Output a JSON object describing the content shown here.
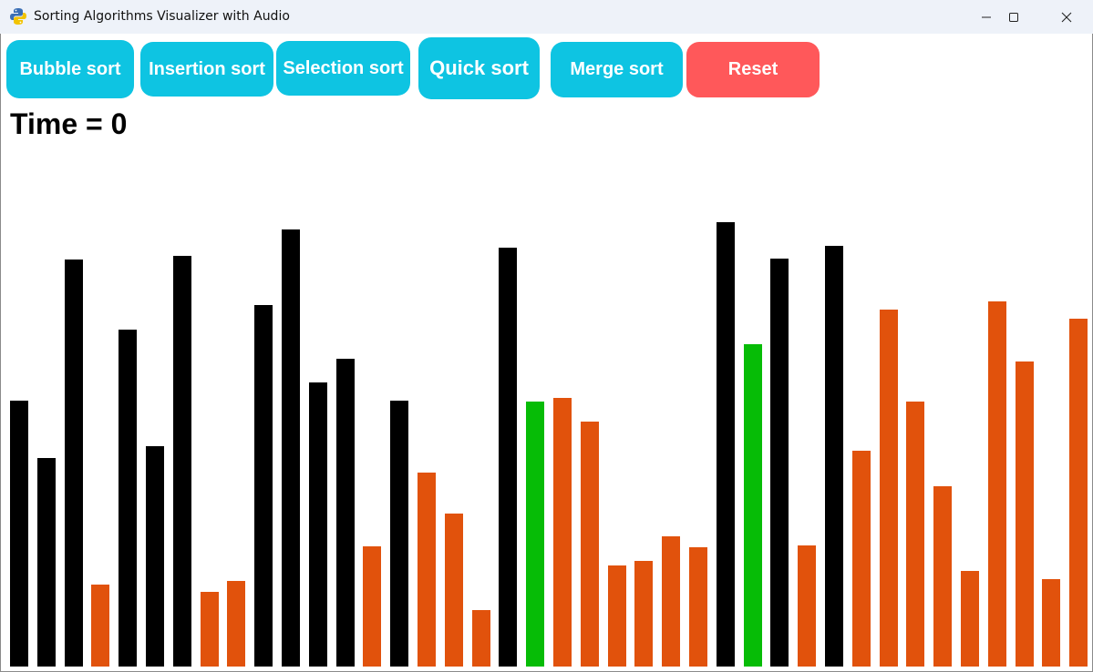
{
  "window": {
    "title": "Sorting Algorithms Visualizer with Audio",
    "app_icon": "python-icon"
  },
  "buttons": {
    "bubble": "Bubble sort",
    "insertion": "Insertion sort",
    "selection": "Selection sort",
    "quick": "Quick sort",
    "merge": "Merge sort",
    "reset": "Reset"
  },
  "time_label": "Time = 0",
  "colors": {
    "default": "#000000",
    "partition": "#e1520c",
    "active": "#06bc06",
    "button": "#0ec4e2",
    "reset": "#ff585a"
  },
  "bars": [
    {
      "value": 292,
      "state": "default"
    },
    {
      "value": 229,
      "state": "default"
    },
    {
      "value": 447,
      "state": "default"
    },
    {
      "value": 90,
      "state": "partition"
    },
    {
      "value": 370,
      "state": "default"
    },
    {
      "value": 242,
      "state": "default"
    },
    {
      "value": 451,
      "state": "default"
    },
    {
      "value": 82,
      "state": "partition"
    },
    {
      "value": 94,
      "state": "partition"
    },
    {
      "value": 397,
      "state": "default"
    },
    {
      "value": 480,
      "state": "default"
    },
    {
      "value": 312,
      "state": "default"
    },
    {
      "value": 338,
      "state": "default"
    },
    {
      "value": 132,
      "state": "partition"
    },
    {
      "value": 292,
      "state": "default"
    },
    {
      "value": 213,
      "state": "partition"
    },
    {
      "value": 168,
      "state": "partition"
    },
    {
      "value": 62,
      "state": "partition"
    },
    {
      "value": 460,
      "state": "default"
    },
    {
      "value": 291,
      "state": "active"
    },
    {
      "value": 295,
      "state": "partition"
    },
    {
      "value": 269,
      "state": "partition"
    },
    {
      "value": 111,
      "state": "partition"
    },
    {
      "value": 116,
      "state": "partition"
    },
    {
      "value": 143,
      "state": "partition"
    },
    {
      "value": 131,
      "state": "partition"
    },
    {
      "value": 488,
      "state": "default"
    },
    {
      "value": 354,
      "state": "active"
    },
    {
      "value": 448,
      "state": "default"
    },
    {
      "value": 133,
      "state": "partition"
    },
    {
      "value": 462,
      "state": "default"
    },
    {
      "value": 237,
      "state": "partition"
    },
    {
      "value": 392,
      "state": "partition"
    },
    {
      "value": 291,
      "state": "partition"
    },
    {
      "value": 198,
      "state": "partition"
    },
    {
      "value": 105,
      "state": "partition"
    },
    {
      "value": 401,
      "state": "partition"
    },
    {
      "value": 335,
      "state": "partition"
    },
    {
      "value": 96,
      "state": "partition"
    },
    {
      "value": 382,
      "state": "partition"
    }
  ]
}
